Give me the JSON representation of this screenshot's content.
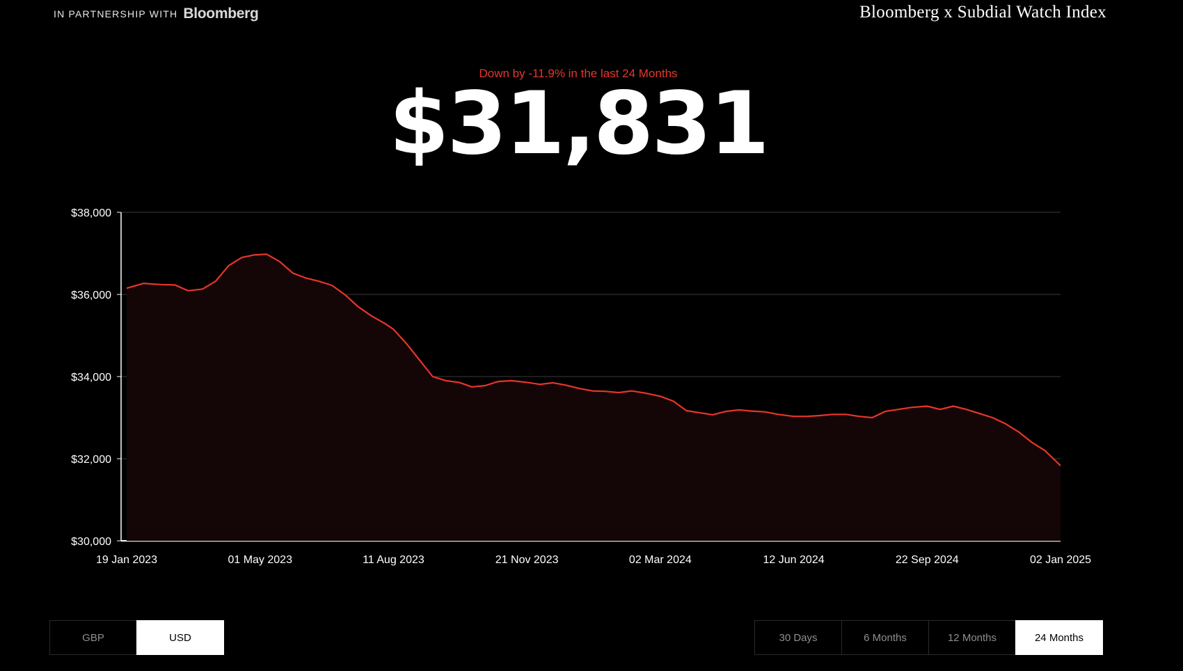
{
  "header": {
    "partner_text": "IN PARTNERSHIP WITH",
    "partner_logo": "Bloomberg",
    "index_title": "Bloomberg x Subdial Watch Index"
  },
  "summary": {
    "change_text": "Down by -11.9% in the last 24 Months",
    "current_value": "$31,831"
  },
  "colors": {
    "background": "#000000",
    "line": "#e8352b",
    "area_fill": "#140506",
    "grid": "#3a3a3a",
    "axis": "#ffffff"
  },
  "chart_data": {
    "type": "line",
    "title": "",
    "xlabel": "",
    "ylabel": "",
    "ylim": [
      30000,
      38000
    ],
    "y_ticks": [
      {
        "value": 38000,
        "label": "$38,000"
      },
      {
        "value": 36000,
        "label": "$36,000"
      },
      {
        "value": 34000,
        "label": "$34,000"
      },
      {
        "value": 32000,
        "label": "$32,000"
      },
      {
        "value": 30000,
        "label": "$30,000"
      }
    ],
    "x_range": [
      "2023-01-19",
      "2025-01-02"
    ],
    "x_ticks": [
      {
        "date": "2023-01-19",
        "label": "19 Jan 2023"
      },
      {
        "date": "2023-05-01",
        "label": "01 May 2023"
      },
      {
        "date": "2023-08-11",
        "label": "11 Aug 2023"
      },
      {
        "date": "2023-11-21",
        "label": "21 Nov 2023"
      },
      {
        "date": "2024-03-02",
        "label": "02 Mar 2024"
      },
      {
        "date": "2024-06-12",
        "label": "12 Jun 2024"
      },
      {
        "date": "2024-09-22",
        "label": "22 Sep 2024"
      },
      {
        "date": "2025-01-02",
        "label": "02 Jan 2025"
      }
    ],
    "grid": true,
    "area_fill": true,
    "series": [
      {
        "x": [
          "2023-01-19",
          "2023-02-01",
          "2023-02-14",
          "2023-02-25",
          "2023-03-07",
          "2023-03-18",
          "2023-03-28",
          "2023-04-07",
          "2023-04-17",
          "2023-04-26",
          "2023-05-06",
          "2023-05-16",
          "2023-05-26",
          "2023-06-05",
          "2023-06-15",
          "2023-06-25",
          "2023-07-05",
          "2023-07-15",
          "2023-07-25",
          "2023-08-04",
          "2023-08-11",
          "2023-08-21",
          "2023-08-31",
          "2023-09-10",
          "2023-09-20",
          "2023-09-30",
          "2023-10-10",
          "2023-10-20",
          "2023-10-30",
          "2023-11-09",
          "2023-11-21",
          "2023-12-01",
          "2023-12-11",
          "2023-12-21",
          "2023-12-31",
          "2024-01-10",
          "2024-01-20",
          "2024-01-30",
          "2024-02-09",
          "2024-02-19",
          "2024-03-02",
          "2024-03-12",
          "2024-03-22",
          "2024-04-01",
          "2024-04-11",
          "2024-04-21",
          "2024-05-01",
          "2024-05-11",
          "2024-05-21",
          "2024-05-31",
          "2024-06-12",
          "2024-06-22",
          "2024-07-02",
          "2024-07-12",
          "2024-07-22",
          "2024-08-01",
          "2024-08-11",
          "2024-08-21",
          "2024-08-31",
          "2024-09-10",
          "2024-09-22",
          "2024-10-02",
          "2024-10-12",
          "2024-10-22",
          "2024-11-01",
          "2024-11-11",
          "2024-11-21",
          "2024-12-01",
          "2024-12-11",
          "2024-12-21",
          "2025-01-02"
        ],
        "values": [
          36150,
          36270,
          36240,
          36230,
          36090,
          36130,
          36320,
          36700,
          36900,
          36960,
          36980,
          36800,
          36520,
          36400,
          36320,
          36220,
          35990,
          35700,
          35480,
          35300,
          35150,
          34800,
          34400,
          34000,
          33900,
          33860,
          33750,
          33780,
          33880,
          33900,
          33860,
          33810,
          33850,
          33790,
          33710,
          33650,
          33640,
          33610,
          33650,
          33600,
          33520,
          33400,
          33170,
          33120,
          33070,
          33150,
          33190,
          33160,
          33140,
          33080,
          33030,
          33030,
          33050,
          33080,
          33080,
          33030,
          33000,
          33150,
          33200,
          33250,
          33280,
          33200,
          33280,
          33200,
          33100,
          33000,
          32850,
          32650,
          32400,
          32200,
          31831
        ]
      }
    ]
  },
  "currency_toggle": {
    "options": [
      "GBP",
      "USD"
    ],
    "selected": "USD"
  },
  "range_toggle": {
    "options": [
      "30 Days",
      "6 Months",
      "12 Months",
      "24 Months"
    ],
    "selected": "24 Months"
  }
}
